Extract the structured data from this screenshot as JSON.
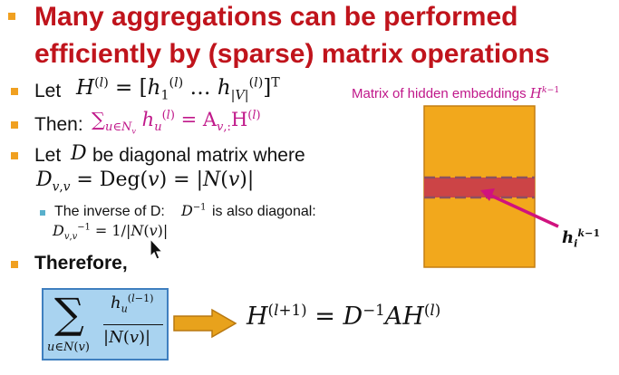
{
  "slide": {
    "title_line1": "Many aggregations can be performed",
    "title_line2": "efficiently by (sparse) matrix operations"
  },
  "bullets": {
    "let_label": "Let",
    "then_label": "Then:",
    "diag_label_a": "Let",
    "diag_label_b": "be diagonal matrix where",
    "sub_bullet_label": "The inverse of D:",
    "sub_bullet_tail": "is also diagonal:",
    "therefore_label": "Therefore,"
  },
  "figure": {
    "caption": "Matrix of hidden embeddings",
    "matrix_color": "#f2a81c",
    "row_color": "#cc4446",
    "arrow_color": "#d0127e"
  },
  "colors": {
    "title": "#c0141c",
    "bullet": "#f0a020",
    "sub_bullet": "#59b0cc",
    "formula_box_fill": "#a9d3f0",
    "formula_box_border": "#3f7fbf",
    "big_arrow": "#e8a21c"
  }
}
